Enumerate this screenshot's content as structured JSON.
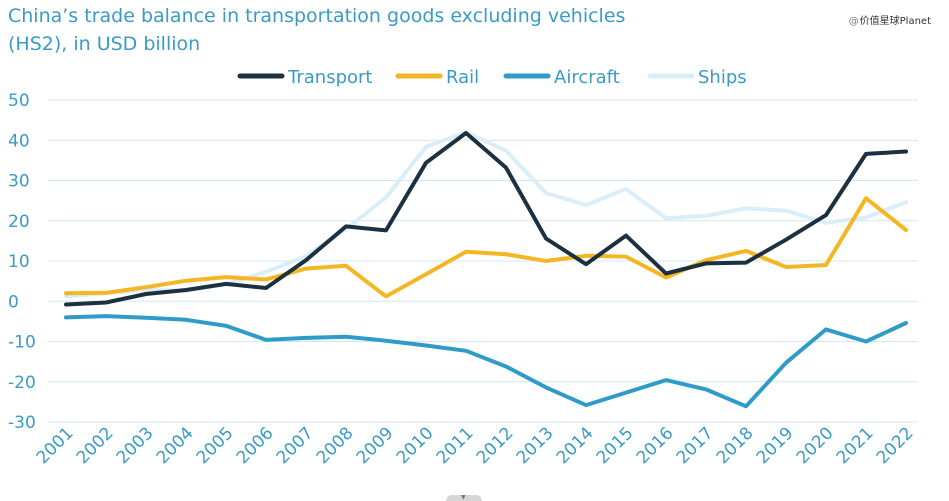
{
  "title_line1": "China’s trade balance in transportation goods excluding vehicles",
  "title_line2": "(HS2), in USD billion",
  "watermark": "价值星球Planet",
  "colors": {
    "transport": "#1c3040",
    "rail": "#f5b623",
    "aircraft": "#2f9bc9",
    "ships": "#d9eef8",
    "axis_text": "#3a9bc4",
    "grid": "#cfe8f3"
  },
  "chart_data": {
    "type": "line",
    "title": "China’s trade balance in transportation goods excluding vehicles (HS2), in USD billion",
    "xlabel": "",
    "ylabel": "",
    "x": [
      "2001",
      "2002",
      "2003",
      "2004",
      "2005",
      "2006",
      "2007",
      "2008",
      "2009",
      "2010",
      "2011",
      "2012",
      "2013",
      "2014",
      "2015",
      "2016",
      "2017",
      "2018",
      "2019",
      "2020",
      "2021",
      "2022"
    ],
    "ylim": [
      -30,
      50
    ],
    "yticks": [
      50,
      40,
      30,
      20,
      10,
      0,
      -10,
      -20,
      -30
    ],
    "grid": "horizontal",
    "legend": "top",
    "series": [
      {
        "name": "Transport",
        "key": "transport",
        "values": [
          -0.8,
          -0.3,
          1.8,
          2.8,
          4.3,
          3.3,
          10.2,
          18.6,
          17.6,
          34.4,
          41.8,
          33.2,
          15.6,
          9.2,
          16.3,
          6.9,
          9.4,
          9.6,
          15.3,
          21.4,
          36.6,
          37.2
        ]
      },
      {
        "name": "Rail",
        "key": "rail",
        "values": [
          2.0,
          2.1,
          3.5,
          5.1,
          6.0,
          5.4,
          8.1,
          8.8,
          1.2,
          6.7,
          12.3,
          11.7,
          10.0,
          11.3,
          11.1,
          5.9,
          10.2,
          12.5,
          8.5,
          9.0,
          25.6,
          17.7
        ]
      },
      {
        "name": "Aircraft",
        "key": "aircraft",
        "values": [
          -4.0,
          -3.7,
          -4.1,
          -4.6,
          -6.1,
          -9.6,
          -9.1,
          -8.8,
          -9.8,
          -11.0,
          -12.3,
          -16.2,
          -21.4,
          -25.8,
          -22.7,
          -19.6,
          -21.9,
          -26.1,
          -15.3,
          -7.0,
          -10.0,
          -5.4
        ]
      },
      {
        "name": "Ships",
        "key": "ships",
        "values": [
          1.2,
          2.0,
          2.8,
          2.6,
          4.2,
          7.3,
          11.2,
          17.9,
          25.8,
          38.4,
          42.0,
          37.4,
          26.9,
          23.9,
          27.9,
          20.6,
          21.2,
          23.1,
          22.5,
          19.5,
          20.8,
          24.6
        ]
      }
    ]
  }
}
